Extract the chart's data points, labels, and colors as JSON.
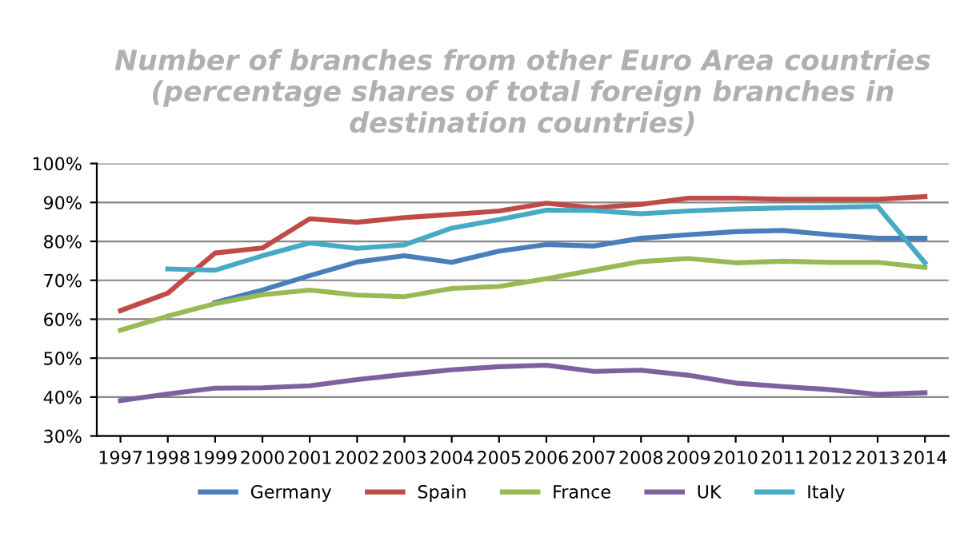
{
  "chart_data": {
    "type": "line",
    "title": "Number of branches from other Euro Area countries\n(percentage shares of total foreign branches in\ndestination countries)",
    "categories": [
      "1997",
      "1998",
      "1999",
      "2000",
      "2001",
      "2002",
      "2003",
      "2004",
      "2005",
      "2006",
      "2007",
      "2008",
      "2009",
      "2010",
      "2011",
      "2012",
      "2013",
      "2014"
    ],
    "series": [
      {
        "name": "Germany",
        "color": "#4a7ebb",
        "values": [
          null,
          null,
          64.3,
          67.5,
          71.2,
          74.7,
          76.3,
          74.6,
          77.5,
          79.2,
          78.8,
          80.8,
          81.7,
          82.5,
          82.8,
          81.7,
          80.8,
          80.8
        ]
      },
      {
        "name": "Spain",
        "color": "#be4b48",
        "values": [
          62.2,
          66.7,
          77.0,
          78.3,
          85.8,
          84.9,
          86.1,
          86.9,
          87.8,
          89.8,
          88.6,
          89.5,
          91.1,
          91.1,
          90.8,
          90.8,
          90.8,
          91.5
        ]
      },
      {
        "name": "France",
        "color": "#98b954",
        "values": [
          57.2,
          60.8,
          64.0,
          66.3,
          67.5,
          66.2,
          65.8,
          67.9,
          68.4,
          70.4,
          72.6,
          74.8,
          75.6,
          74.5,
          74.9,
          74.6,
          74.6,
          73.3
        ]
      },
      {
        "name": "UK",
        "color": "#7d60a0",
        "values": [
          39.1,
          40.8,
          42.3,
          42.4,
          42.9,
          44.5,
          45.8,
          47.0,
          47.8,
          48.2,
          46.6,
          46.9,
          45.6,
          43.6,
          42.7,
          41.9,
          40.7,
          41.1
        ]
      },
      {
        "name": "Italy",
        "color": "#46aac5",
        "values": [
          null,
          72.9,
          72.6,
          76.3,
          79.6,
          78.2,
          79.1,
          83.4,
          85.6,
          88.0,
          87.9,
          87.1,
          87.8,
          88.3,
          88.6,
          88.7,
          89.0,
          74.5
        ]
      }
    ],
    "ylim": [
      30,
      100
    ],
    "yticks": [
      {
        "value": 30,
        "label": "30%"
      },
      {
        "value": 40,
        "label": "40%"
      },
      {
        "value": 50,
        "label": "50%"
      },
      {
        "value": 60,
        "label": "60%"
      },
      {
        "value": 70,
        "label": "70%"
      },
      {
        "value": 80,
        "label": "80%"
      },
      {
        "value": 90,
        "label": "90%"
      },
      {
        "value": 100,
        "label": "100%"
      }
    ],
    "grid": "y",
    "legend": "bottom",
    "marker": "none",
    "line_style": "solid"
  }
}
